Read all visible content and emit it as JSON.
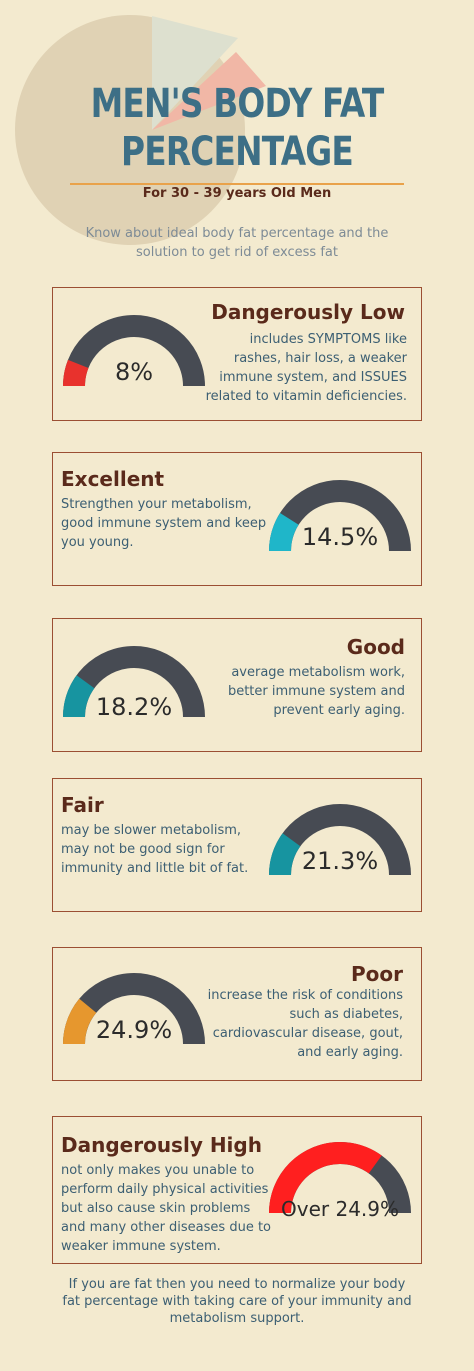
{
  "header": {
    "title_line1": "MEN'S BODY FAT",
    "title_line2": "PERCENTAGE",
    "subtitle": "For 30 - 39 years Old Men",
    "intro": "Know about ideal body fat percentage and the solution to get rid of excess fat"
  },
  "colors": {
    "gauge_track": "#474b53",
    "red": "#e8322d",
    "cyan": "#1fb6c9",
    "teal": "#1794a0",
    "orange": "#e6972e",
    "bright_red": "#ff1f1f"
  },
  "categories": [
    {
      "title": "Dangerously Low",
      "description": "includes SYMPTOMS  like rashes, hair loss,  a weaker immune system, and ISSUES related to vitamin deficiencies.",
      "value": "8%",
      "fill": 0.12,
      "color": "#e8322d"
    },
    {
      "title": "Excellent",
      "description": "Strengthen your metabolism, good immune system and keep you young.",
      "value": "14.5%",
      "fill": 0.18,
      "color": "#1fb6c9"
    },
    {
      "title": "Good",
      "description": "average metabolism work, better immune system and prevent early aging.",
      "value": "18.2%",
      "fill": 0.2,
      "color": "#1794a0"
    },
    {
      "title": "Fair",
      "description": "may be slower metabolism, may not be good sign for immunity and little bit of fat.",
      "value": "21.3%",
      "fill": 0.2,
      "color": "#1794a0"
    },
    {
      "title": "Poor",
      "description": "increase the risk of conditions such as diabetes, cardiovascular disease, gout, and early aging.",
      "value": "24.9%",
      "fill": 0.22,
      "color": "#e6972e"
    },
    {
      "title": "Dangerously High",
      "description": "not only makes you unable to perform daily physical activities but also cause skin problems and many other diseases due to weaker immune system.",
      "value": "Over 24.9%",
      "fill": 0.7,
      "color": "#ff1f1f"
    }
  ],
  "closing": "If you are fat then you need to normalize your body fat percentage with taking care of your immunity and metabolism support."
}
